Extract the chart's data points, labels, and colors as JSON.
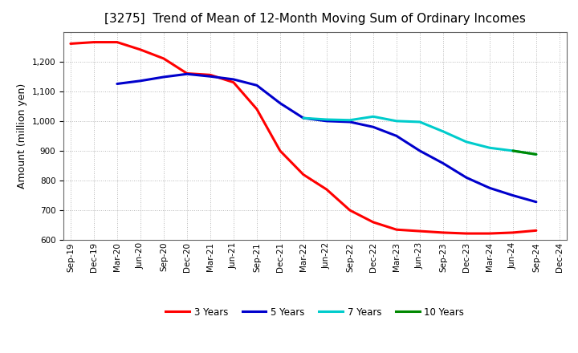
{
  "title": "[3275]  Trend of Mean of 12-Month Moving Sum of Ordinary Incomes",
  "ylabel": "Amount (million yen)",
  "ylim": [
    600,
    1300
  ],
  "yticks": [
    600,
    700,
    800,
    900,
    1000,
    1100,
    1200
  ],
  "background_color": "#ffffff",
  "grid_color": "#999999",
  "x_labels": [
    "Sep-19",
    "Dec-19",
    "Mar-20",
    "Jun-20",
    "Sep-20",
    "Dec-20",
    "Mar-21",
    "Jun-21",
    "Sep-21",
    "Dec-21",
    "Mar-22",
    "Jun-22",
    "Sep-22",
    "Dec-22",
    "Mar-23",
    "Jun-23",
    "Sep-23",
    "Dec-23",
    "Mar-24",
    "Jun-24",
    "Sep-24",
    "Dec-24"
  ],
  "series": {
    "3 Years": {
      "color": "#ff0000",
      "data": [
        1260,
        1265,
        1265,
        1240,
        1210,
        1160,
        1155,
        1130,
        1040,
        900,
        820,
        770,
        700,
        660,
        635,
        630,
        625,
        622,
        622,
        625,
        632,
        null
      ]
    },
    "5 Years": {
      "color": "#0000cc",
      "data": [
        null,
        null,
        1125,
        1135,
        1148,
        1158,
        1150,
        1140,
        1120,
        1060,
        1010,
        1000,
        997,
        980,
        950,
        900,
        858,
        810,
        775,
        750,
        728,
        null
      ]
    },
    "7 Years": {
      "color": "#00cccc",
      "data": [
        null,
        null,
        null,
        null,
        null,
        null,
        null,
        null,
        null,
        null,
        1010,
        1005,
        1003,
        1015,
        1000,
        997,
        965,
        930,
        910,
        900,
        888,
        null
      ]
    },
    "10 Years": {
      "color": "#008800",
      "data": [
        null,
        null,
        null,
        null,
        null,
        null,
        null,
        null,
        null,
        null,
        null,
        null,
        null,
        null,
        null,
        null,
        null,
        null,
        null,
        900,
        888,
        null
      ]
    }
  },
  "legend_labels": [
    "3 Years",
    "5 Years",
    "7 Years",
    "10 Years"
  ],
  "legend_colors": [
    "#ff0000",
    "#0000cc",
    "#00cccc",
    "#008800"
  ],
  "title_fontsize": 11,
  "tick_fontsize": 7.5,
  "label_fontsize": 9
}
